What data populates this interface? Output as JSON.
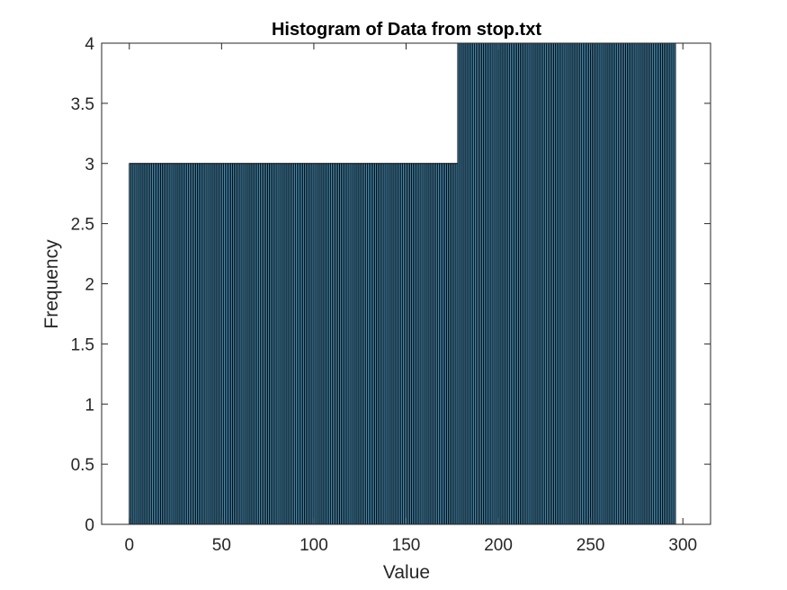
{
  "chart_data": {
    "type": "bar",
    "title": "Histogram of Data from stop.txt",
    "xlabel": "Value",
    "ylabel": "Frequency",
    "xlim": [
      -15,
      315
    ],
    "ylim": [
      0,
      4
    ],
    "xticks": [
      0,
      50,
      100,
      150,
      200,
      250,
      300
    ],
    "xtick_labels": [
      "0",
      "50",
      "100",
      "150",
      "200",
      "250",
      "300"
    ],
    "yticks": [
      0,
      0.5,
      1,
      1.5,
      2,
      2.5,
      3,
      3.5,
      4
    ],
    "ytick_labels": [
      "0",
      "0.5",
      "1",
      "1.5",
      "2",
      "2.5",
      "3",
      "3.5",
      "4"
    ],
    "bin_width": 1,
    "bins": [
      {
        "x_start": 0,
        "x_end": 178,
        "frequency": 3
      },
      {
        "x_start": 178,
        "x_end": 296,
        "frequency": 4
      }
    ],
    "grid": false,
    "bar_color": "#4a90b8",
    "bar_edge_color": "#000000"
  }
}
